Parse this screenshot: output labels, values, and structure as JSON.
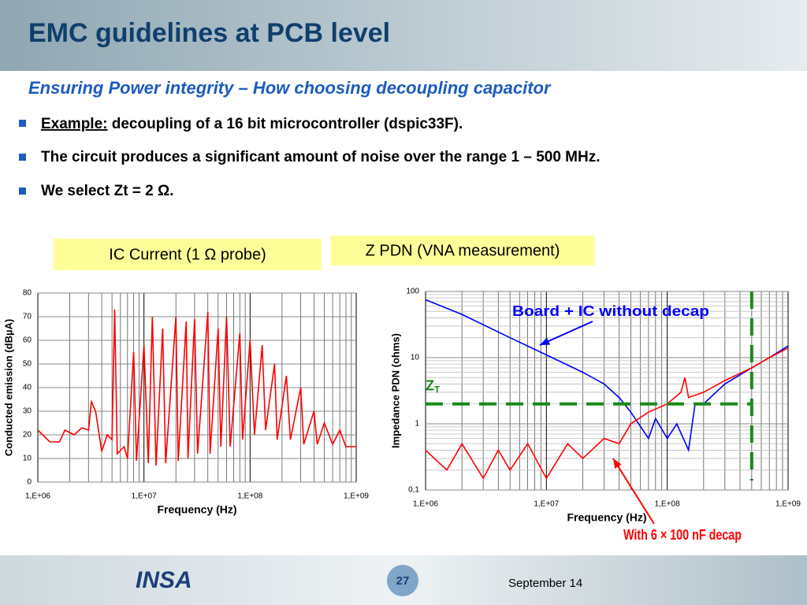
{
  "header": {
    "title": "EMC guidelines at PCB level",
    "subtitle": "Ensuring Power integrity – How choosing decoupling capacitor"
  },
  "bullets": [
    {
      "lead": "Example:",
      "text": " decoupling of a 16 bit microcontroller (dspic33F)."
    },
    {
      "text": "The circuit produces a significant amount of noise over the range 1 – 500 MHz."
    },
    {
      "text": "We select Zt = 2 Ω."
    }
  ],
  "chart_data": [
    {
      "type": "line",
      "title": "IC Current (1 Ω probe)",
      "xlabel": "Frequency (Hz)",
      "ylabel": "Conducted emission (dBµA)",
      "xlog": true,
      "grid": true,
      "color": "#ff0000",
      "xlim": [
        1000000,
        1000000000
      ],
      "xticks": [
        {
          "value": 1000000,
          "label": "1,E+06"
        },
        {
          "value": 10000000,
          "label": "1,E+07"
        },
        {
          "value": 100000000,
          "label": "1,E+08"
        },
        {
          "value": 1000000000,
          "label": "1,E+09"
        }
      ],
      "ylim": [
        0,
        80
      ],
      "yticks": [
        0,
        10,
        20,
        30,
        40,
        50,
        60,
        70,
        80
      ],
      "x": [
        1000000,
        1300000,
        1600000,
        1800000,
        2200000,
        2600000,
        3000000,
        3200000,
        3500000,
        4000000,
        4500000,
        5000000,
        5300000,
        5600000,
        6500000,
        7000000,
        8000000,
        8500000,
        10000000,
        11000000,
        12000000,
        13000000,
        15000000,
        16000000,
        20000000,
        21000000,
        25000000,
        26000000,
        30000000,
        32000000,
        40000000,
        42000000,
        50000000,
        53000000,
        60000000,
        65000000,
        80000000,
        85000000,
        100000000,
        110000000,
        130000000,
        140000000,
        170000000,
        180000000,
        220000000,
        240000000,
        300000000,
        320000000,
        400000000,
        430000000,
        500000000,
        600000000,
        700000000,
        800000000,
        1000000000
      ],
      "values": [
        22,
        17,
        17,
        22,
        20,
        23,
        22,
        34,
        30,
        13,
        20,
        18,
        73,
        12,
        15,
        10,
        55,
        9,
        58,
        8,
        70,
        7,
        65,
        8,
        70,
        9,
        68,
        10,
        69,
        12,
        72,
        12,
        65,
        15,
        70,
        15,
        63,
        18,
        60,
        20,
        58,
        22,
        50,
        18,
        45,
        18,
        40,
        16,
        30,
        16,
        25,
        16,
        22,
        15,
        15
      ]
    },
    {
      "type": "line",
      "title": "Z PDN (VNA measurement)",
      "xlabel": "Frequency (Hz)",
      "ylabel": "Impedance PDN (ohms)",
      "xlog": true,
      "ylog": true,
      "grid": true,
      "xlim": [
        1000000,
        1000000000
      ],
      "xticks": [
        {
          "value": 1000000,
          "label": "1,E+06"
        },
        {
          "value": 10000000,
          "label": "1,E+07"
        },
        {
          "value": 100000000,
          "label": "1,E+08"
        },
        {
          "value": 1000000000,
          "label": "1,E+09"
        }
      ],
      "ylim": [
        0.1,
        100
      ],
      "yticks": [
        {
          "value": 0.1,
          "label": "0,1"
        },
        1,
        10,
        100
      ],
      "threshold": 2,
      "threshold_label": "Z",
      "threshold_label_sub": "T",
      "threshold_color": "#1a8a1a",
      "xmarker": 500000000,
      "series": [
        {
          "name": "Board + IC without decap",
          "color": "#0000ff",
          "x": [
            1000000,
            2000000,
            5000000,
            10000000,
            20000000,
            30000000,
            40000000,
            50000000,
            70000000,
            80000000,
            100000000,
            120000000,
            150000000,
            170000000,
            200000000,
            300000000,
            500000000,
            700000000,
            1000000000
          ],
          "values": [
            75,
            45,
            20,
            11,
            6,
            4,
            2.5,
            1.5,
            0.6,
            1.2,
            0.6,
            1,
            0.4,
            2,
            2,
            4,
            7,
            10,
            15
          ]
        },
        {
          "name": "With 6 × 100 nF decap",
          "color": "#ff0000",
          "x": [
            1000000,
            1500000,
            2000000,
            3000000,
            4000000,
            5000000,
            7000000,
            10000000,
            15000000,
            20000000,
            30000000,
            40000000,
            50000000,
            70000000,
            100000000,
            130000000,
            140000000,
            150000000,
            200000000,
            300000000,
            500000000,
            700000000,
            1000000000
          ],
          "values": [
            0.4,
            0.2,
            0.5,
            0.15,
            0.4,
            0.2,
            0.5,
            0.15,
            0.5,
            0.3,
            0.6,
            0.5,
            1,
            1.5,
            2,
            3,
            5,
            2.5,
            3,
            4.5,
            7,
            10,
            14
          ]
        }
      ]
    }
  ],
  "footer": {
    "logo": "INSA",
    "page": "27",
    "date": "September 14"
  }
}
